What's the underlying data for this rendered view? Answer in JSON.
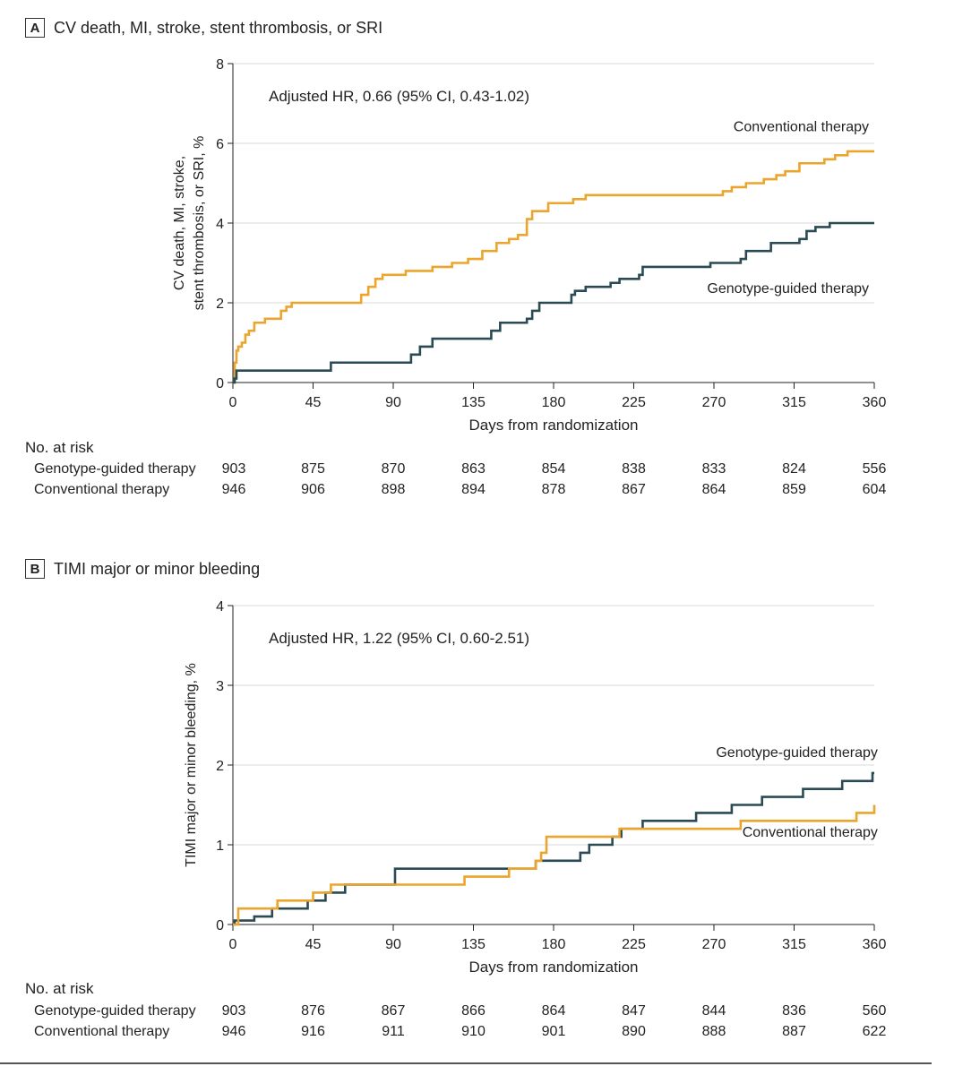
{
  "colors": {
    "genotype": "#2a4a54",
    "conventional": "#eca52c",
    "grid": "#d8d8d8",
    "axis": "#222222"
  },
  "panels": [
    {
      "letter": "A",
      "title": "CV death, MI, stroke, stent thrombosis, or SRI",
      "annotation": "Adjusted HR, 0.66 (95% CI, 0.43-1.02)",
      "risk": {
        "title": "No. at risk",
        "rows": [
          {
            "name": "Genotype-guided therapy",
            "values": [
              "903",
              "875",
              "870",
              "863",
              "854",
              "838",
              "833",
              "824",
              "556"
            ]
          },
          {
            "name": "Conventional therapy",
            "values": [
              "946",
              "906",
              "898",
              "894",
              "878",
              "867",
              "864",
              "859",
              "604"
            ]
          }
        ]
      },
      "chart_data": {
        "type": "line",
        "title": "CV death, MI, stroke, stent thrombosis, or SRI",
        "xlabel": "Days from randomization",
        "ylabel": [
          "CV death, MI, stroke,",
          "stent thrombosis, or SRI, %"
        ],
        "xlim": [
          0,
          360
        ],
        "ylim": [
          0,
          8
        ],
        "xticks": [
          0,
          45,
          90,
          135,
          180,
          225,
          270,
          315,
          360
        ],
        "yticks": [
          0,
          2,
          4,
          6,
          8
        ],
        "grid": true,
        "series": [
          {
            "name": "Conventional therapy",
            "colorKey": "conventional",
            "labelAt": [
              360,
              6.3
            ],
            "points": [
              [
                0,
                0
              ],
              [
                1,
                0.5
              ],
              [
                2,
                0.8
              ],
              [
                3,
                0.9
              ],
              [
                5,
                1.0
              ],
              [
                7,
                1.2
              ],
              [
                9,
                1.3
              ],
              [
                12,
                1.5
              ],
              [
                18,
                1.6
              ],
              [
                27,
                1.8
              ],
              [
                30,
                1.9
              ],
              [
                33,
                2.0
              ],
              [
                70,
                2.0
              ],
              [
                72,
                2.2
              ],
              [
                76,
                2.4
              ],
              [
                80,
                2.6
              ],
              [
                84,
                2.7
              ],
              [
                97,
                2.8
              ],
              [
                112,
                2.9
              ],
              [
                123,
                3.0
              ],
              [
                132,
                3.1
              ],
              [
                140,
                3.3
              ],
              [
                148,
                3.5
              ],
              [
                155,
                3.6
              ],
              [
                160,
                3.7
              ],
              [
                165,
                4.1
              ],
              [
                168,
                4.3
              ],
              [
                177,
                4.5
              ],
              [
                191,
                4.6
              ],
              [
                198,
                4.7
              ],
              [
                260,
                4.7
              ],
              [
                275,
                4.8
              ],
              [
                280,
                4.9
              ],
              [
                288,
                5.0
              ],
              [
                298,
                5.1
              ],
              [
                305,
                5.2
              ],
              [
                310,
                5.3
              ],
              [
                318,
                5.5
              ],
              [
                332,
                5.6
              ],
              [
                338,
                5.7
              ],
              [
                345,
                5.8
              ],
              [
                360,
                5.8
              ]
            ]
          },
          {
            "name": "Genotype-guided therapy",
            "colorKey": "genotype",
            "labelAt": [
              360,
              2.25
            ],
            "points": [
              [
                0,
                0
              ],
              [
                1,
                0.1
              ],
              [
                2,
                0.3
              ],
              [
                40,
                0.3
              ],
              [
                55,
                0.5
              ],
              [
                96,
                0.5
              ],
              [
                100,
                0.7
              ],
              [
                105,
                0.9
              ],
              [
                112,
                1.1
              ],
              [
                130,
                1.1
              ],
              [
                145,
                1.3
              ],
              [
                150,
                1.5
              ],
              [
                165,
                1.6
              ],
              [
                168,
                1.8
              ],
              [
                172,
                2.0
              ],
              [
                188,
                2.0
              ],
              [
                190,
                2.2
              ],
              [
                192,
                2.3
              ],
              [
                198,
                2.4
              ],
              [
                212,
                2.5
              ],
              [
                217,
                2.6
              ],
              [
                228,
                2.7
              ],
              [
                230,
                2.9
              ],
              [
                265,
                2.9
              ],
              [
                268,
                3.0
              ],
              [
                285,
                3.1
              ],
              [
                288,
                3.3
              ],
              [
                302,
                3.5
              ],
              [
                318,
                3.6
              ],
              [
                322,
                3.8
              ],
              [
                327,
                3.9
              ],
              [
                335,
                4.0
              ],
              [
                360,
                4.0
              ]
            ]
          }
        ]
      }
    },
    {
      "letter": "B",
      "title": "TIMI major or minor bleeding",
      "annotation": "Adjusted HR, 1.22 (95% CI, 0.60-2.51)",
      "risk": {
        "title": "No. at risk",
        "rows": [
          {
            "name": "Genotype-guided therapy",
            "values": [
              "903",
              "876",
              "867",
              "866",
              "864",
              "847",
              "844",
              "836",
              "560"
            ]
          },
          {
            "name": "Conventional therapy",
            "values": [
              "946",
              "916",
              "911",
              "910",
              "901",
              "890",
              "888",
              "887",
              "622"
            ]
          }
        ]
      },
      "chart_data": {
        "type": "line",
        "title": "TIMI major or minor bleeding",
        "xlabel": "Days from randomization",
        "ylabel": [
          "TIMI major or minor bleeding, %"
        ],
        "xlim": [
          0,
          360
        ],
        "ylim": [
          0,
          4
        ],
        "xticks": [
          0,
          45,
          90,
          135,
          180,
          225,
          270,
          315,
          360
        ],
        "yticks": [
          0,
          1,
          2,
          3,
          4
        ],
        "grid": true,
        "series": [
          {
            "name": "Genotype-guided therapy",
            "colorKey": "genotype",
            "labelAt": [
              365,
              2.1
            ],
            "points": [
              [
                0,
                0
              ],
              [
                1,
                0.05
              ],
              [
                12,
                0.1
              ],
              [
                22,
                0.2
              ],
              [
                42,
                0.3
              ],
              [
                52,
                0.4
              ],
              [
                63,
                0.5
              ],
              [
                90,
                0.5
              ],
              [
                91,
                0.7
              ],
              [
                135,
                0.7
              ],
              [
                165,
                0.7
              ],
              [
                170,
                0.8
              ],
              [
                195,
                0.9
              ],
              [
                200,
                1.0
              ],
              [
                213,
                1.1
              ],
              [
                218,
                1.2
              ],
              [
                230,
                1.3
              ],
              [
                258,
                1.3
              ],
              [
                260,
                1.4
              ],
              [
                280,
                1.5
              ],
              [
                297,
                1.6
              ],
              [
                320,
                1.7
              ],
              [
                342,
                1.8
              ],
              [
                359,
                1.9
              ],
              [
                360,
                1.9
              ]
            ]
          },
          {
            "name": "Conventional therapy",
            "colorKey": "conventional",
            "labelAt": [
              365,
              1.1
            ],
            "points": [
              [
                0,
                0
              ],
              [
                3,
                0.2
              ],
              [
                25,
                0.3
              ],
              [
                45,
                0.4
              ],
              [
                55,
                0.5
              ],
              [
                70,
                0.5
              ],
              [
                90,
                0.5
              ],
              [
                130,
                0.6
              ],
              [
                155,
                0.7
              ],
              [
                170,
                0.8
              ],
              [
                173,
                0.9
              ],
              [
                176,
                1.1
              ],
              [
                215,
                1.1
              ],
              [
                217,
                1.2
              ],
              [
                280,
                1.2
              ],
              [
                285,
                1.3
              ],
              [
                330,
                1.3
              ],
              [
                350,
                1.4
              ],
              [
                360,
                1.5
              ]
            ]
          }
        ]
      }
    }
  ]
}
